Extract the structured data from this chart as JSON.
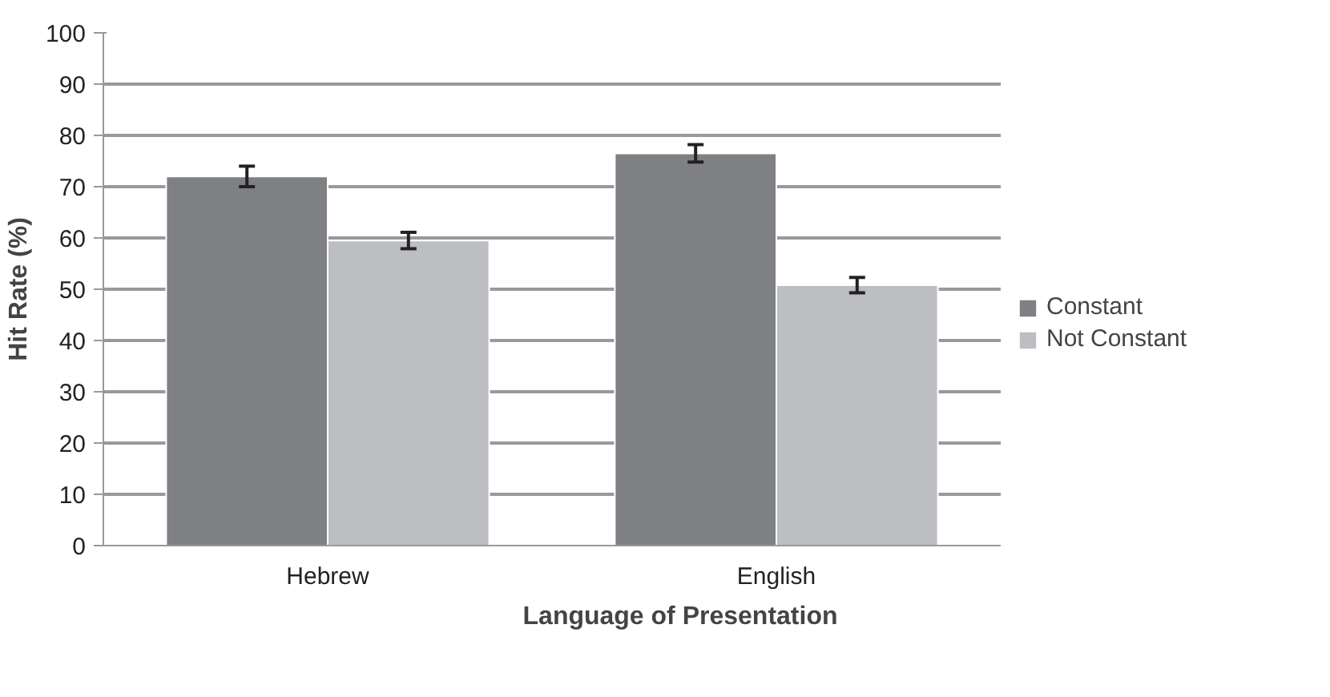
{
  "chart_data": {
    "type": "bar",
    "xlabel": "Language of Presentation",
    "ylabel": "Hit Rate (%)",
    "categories": [
      "Hebrew",
      "English"
    ],
    "series": [
      {
        "name": "Constant",
        "color": "#7f8083",
        "values": [
          72,
          76.5
        ],
        "errors": [
          2,
          1.7
        ]
      },
      {
        "name": "Not Constant",
        "color": "#bdbec1",
        "values": [
          59.5,
          50.8
        ],
        "errors": [
          1.6,
          1.5
        ]
      }
    ],
    "ylim": [
      0,
      100
    ],
    "yticks": [
      0,
      10,
      20,
      30,
      40,
      50,
      60,
      70,
      80,
      90,
      100
    ],
    "grid": "y",
    "legend": "right"
  }
}
